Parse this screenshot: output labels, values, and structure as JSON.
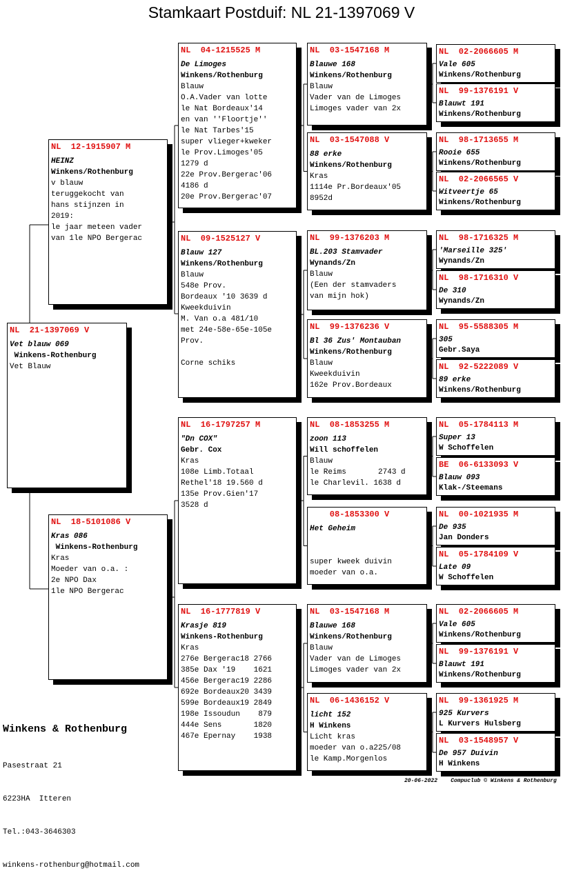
{
  "title": "Stamkaart Postduif: NL  21-1397069 V",
  "colors": {
    "ring": "#e01010",
    "text": "#000000"
  },
  "cards": [
    {
      "role": "subject",
      "ring": "NL  21-1397069 V",
      "name": "Vet blauw 069",
      "owner": " Winkens-Rothenburg",
      "lines": [
        "Vet Blauw"
      ]
    },
    {
      "role": "father",
      "ring": "NL  12-1915907 M",
      "name": "HEINZ",
      "owner": "Winkens/Rothenburg",
      "lines": [
        "v blauw",
        "teruggekocht van",
        "hans stijnzen in",
        "2019:",
        "le jaar meteen vader",
        "van 1le NPO Bergerac"
      ]
    },
    {
      "role": "mother",
      "ring": "NL  18-5101086 V",
      "name": "Kras 086",
      "owner": " Winkens-Rothenburg",
      "lines": [
        "Kras",
        "Moeder van o.a. :",
        "2e NPO Dax",
        "1le NPO Bergerac"
      ]
    },
    {
      "role": "ff",
      "ring": "NL  04-1215525 M",
      "name": "De Limoges",
      "owner": "Winkens/Rothenburg",
      "lines": [
        "Blauw",
        "O.A.Vader van lotte",
        "le Nat Bordeaux'14",
        "en van ''Floortje''",
        "le Nat Tarbes'15",
        "super vlieger+kweker",
        "le Prov.Limoges'05",
        "1279 d",
        "22e Prov.Bergerac'06",
        "4186 d",
        "20e Prov.Bergerac'07"
      ]
    },
    {
      "role": "fm",
      "ring": "NL  09-1525127 V",
      "name": "Blauw 127",
      "owner": "Winkens/Rothenburg",
      "lines": [
        "Blauw",
        "548e Prov.",
        "Bordeaux '10 3639 d",
        "Kweekduivin",
        "M. Van o.a 481/10",
        "met 24e-58e-65e-105e",
        "Prov.",
        "",
        "Corne schiks"
      ]
    },
    {
      "role": "mf",
      "ring": "NL  16-1797257 M",
      "name": "\"Dn COX\"",
      "owner": "Gebr. Cox",
      "lines": [
        "Kras",
        "108e Limb.Totaal",
        "Rethel'18 19.560 d",
        "135e Prov.Gien'17",
        "3528 d"
      ]
    },
    {
      "role": "mm",
      "ring": "NL  16-1777819 V",
      "name": "Krasje 819",
      "owner": "Winkens-Rothenburg",
      "lines": [
        "Kras",
        "276e Bergerac18 2766",
        "385e Dax '19    1621",
        "456e Bergerac19 2286",
        "692e Bordeaux20 3439",
        "599e Bordeaux19 2849",
        "198e Issoudun    879",
        "444e Sens       1820",
        "467e Epernay    1938"
      ]
    },
    {
      "role": "fff",
      "ring": "NL  03-1547168 M",
      "name": "Blauwe 168",
      "owner": "Winkens/Rothenburg",
      "lines": [
        "Blauw",
        "Vader van de Limoges",
        "Limoges vader van 2x"
      ]
    },
    {
      "role": "ffm",
      "ring": "NL  03-1547088 V",
      "name": "88 erke",
      "owner": "Winkens/Rothenburg",
      "lines": [
        "Kras",
        "1114e Pr.Bordeaux'05",
        "8952d"
      ]
    },
    {
      "role": "fmf",
      "ring": "NL  99-1376203 M",
      "name": "BL.203 Stamvader",
      "owner": "Wynands/Zn",
      "lines": [
        "Blauw",
        "(Een der stamvaders",
        "van mijn hok)"
      ]
    },
    {
      "role": "fmm",
      "ring": "NL  99-1376236 V",
      "name": "Bl 36 Zus' Montauban",
      "owner": "Winkens/Rothenburg",
      "lines": [
        "Blauw",
        "Kweekduivin",
        "162e Prov.Bordeaux"
      ]
    },
    {
      "role": "mff",
      "ring": "NL  08-1853255 M",
      "name": "zoon 113",
      "owner": "Will schoffelen",
      "lines": [
        "Blauw",
        "le Reims       2743 d",
        "le Charlevil. 1638 d"
      ]
    },
    {
      "role": "mfm",
      "ring": "    08-1853300 V",
      "name": "Het Geheim",
      "owner": "",
      "lines": [
        "",
        "super kweek duivin",
        "moeder van o.a."
      ]
    },
    {
      "role": "mmf",
      "ring": "NL  03-1547168 M",
      "name": "Blauwe 168",
      "owner": "Winkens/Rothenburg",
      "lines": [
        "Blauw",
        "Vader van de Limoges",
        "Limoges vader van 2x"
      ]
    },
    {
      "role": "mmm",
      "ring": "NL  06-1436152 V",
      "name": "licht 152",
      "owner": "H Winkens",
      "lines": [
        "Licht kras",
        "moeder van o.a225/08",
        "le Kamp.Morgenlos"
      ]
    },
    {
      "role": "g5-1",
      "ring": "NL  02-2066605 M",
      "name": "Vale 605",
      "owner": "Winkens/Rothenburg",
      "lines": []
    },
    {
      "role": "g5-2",
      "ring": "NL  99-1376191 V",
      "name": "Blauwt 191",
      "owner": "Winkens/Rothenburg",
      "lines": []
    },
    {
      "role": "g5-3",
      "ring": "NL  98-1713655 M",
      "name": "Rooie 655",
      "owner": "Winkens/Rothenburg",
      "lines": []
    },
    {
      "role": "g5-4",
      "ring": "NL  02-2066565 V",
      "name": "Witveertje 65",
      "owner": "Winkens/Rothenburg",
      "lines": []
    },
    {
      "role": "g5-5",
      "ring": "NL  98-1716325 M",
      "name": "'Marseille 325'",
      "owner": "Wynands/Zn",
      "lines": []
    },
    {
      "role": "g5-6",
      "ring": "NL  98-1716310 V",
      "name": "De 310",
      "owner": "Wynands/Zn",
      "lines": []
    },
    {
      "role": "g5-7",
      "ring": "NL  95-5588305 M",
      "name": "305",
      "owner": "Gebr.Saya",
      "lines": []
    },
    {
      "role": "g5-8",
      "ring": "NL  92-5222089 V",
      "name": "89 erke",
      "owner": "Winkens/Rothenburg",
      "lines": []
    },
    {
      "role": "g5-9",
      "ring": "NL  05-1784113 M",
      "name": "Super 13",
      "owner": "W Schoffelen",
      "lines": []
    },
    {
      "role": "g5-10",
      "ring": "BE  06-6133093 V",
      "name": "Blauw 093",
      "owner": "Klak-/Steemans",
      "lines": []
    },
    {
      "role": "g5-11",
      "ring": "NL  00-1021935 M",
      "name": "De 935",
      "owner": "Jan Donders",
      "lines": []
    },
    {
      "role": "g5-12",
      "ring": "NL  05-1784109 V",
      "name": "Late 09",
      "owner": "W Schoffelen",
      "lines": []
    },
    {
      "role": "g5-13",
      "ring": "NL  02-2066605 M",
      "name": "Vale 605",
      "owner": "Winkens/Rothenburg",
      "lines": []
    },
    {
      "role": "g5-14",
      "ring": "NL  99-1376191 V",
      "name": "Blauwt 191",
      "owner": "Winkens/Rothenburg",
      "lines": []
    },
    {
      "role": "g5-15",
      "ring": "NL  99-1361925 M",
      "name": "925 Kurvers",
      "owner": "L Kurvers Hulsberg",
      "lines": []
    },
    {
      "role": "g5-16",
      "ring": "NL  03-1548957 V",
      "name": "De 957 Duivin",
      "owner": "H Winkens",
      "lines": []
    }
  ],
  "breeder": {
    "name": "Winkens & Rothenburg",
    "street": "Pasestraat 21",
    "city": "6223HA  Itteren",
    "phone": "Tel.:043-3646303",
    "email": "winkens-rothenburg@hotmail.com"
  },
  "footer": "20-06-2022    Compuclub © Winkens & Rothenburg"
}
